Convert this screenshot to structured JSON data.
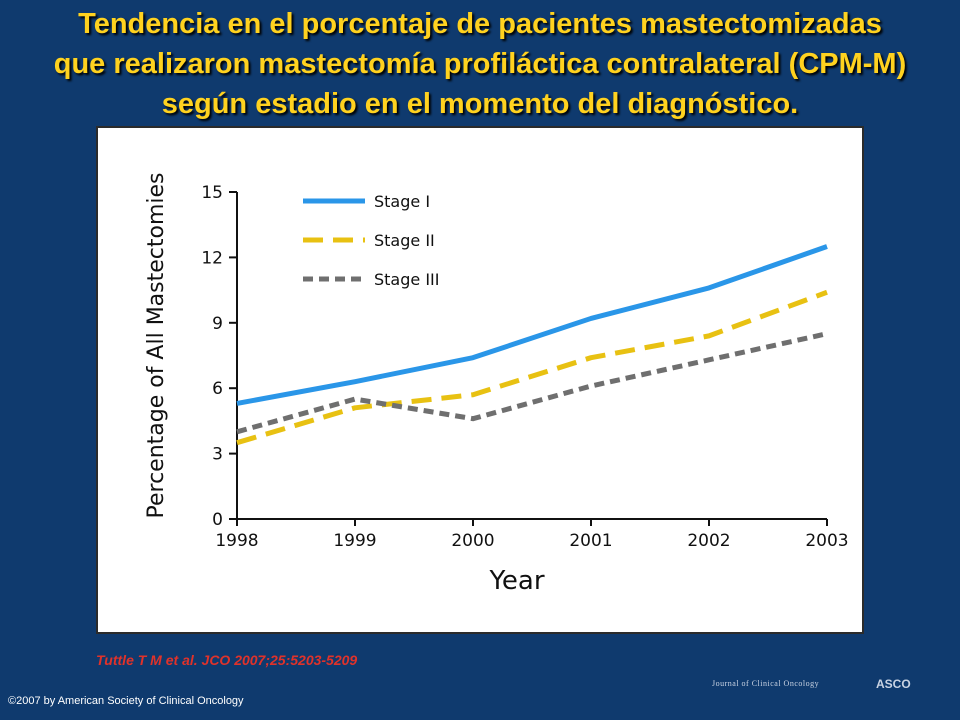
{
  "slide": {
    "title_lines": [
      "Tendencia en el porcentaje de pacientes mastectomizadas",
      "que realizaron mastectomía profiláctica contralateral (CPM-M)",
      "según estadio en el momento del diagnóstico."
    ],
    "citation": "Tuttle T M et al. JCO 2007;25:5203-5209",
    "copyright": "©2007 by American Society of Clinical Oncology",
    "journal_logo_text": "Journal of Clinical Oncology",
    "asco_logo_text": "ASCO"
  },
  "colors": {
    "background": "#0f3a6e",
    "title": "#ffd21f",
    "citation": "#e0322a",
    "stage1": "#2a96e8",
    "stage2": "#e8c112",
    "stage3": "#6f6f6f"
  },
  "chart_data": {
    "type": "line",
    "title": "",
    "xlabel": "Year",
    "ylabel": "Percentage of All Mastectomies",
    "x": [
      1998,
      1999,
      2000,
      2001,
      2002,
      2003
    ],
    "xlim": [
      1998,
      2003
    ],
    "ylim": [
      0,
      15
    ],
    "yticks": [
      0,
      3,
      6,
      9,
      12,
      15
    ],
    "grid": false,
    "legend_position": "top-left",
    "series": [
      {
        "name": "Stage I",
        "style": "solid",
        "color": "#2a96e8",
        "values": [
          5.3,
          6.3,
          7.4,
          9.2,
          10.6,
          12.5
        ]
      },
      {
        "name": "Stage II",
        "style": "dashed",
        "color": "#e8c112",
        "values": [
          3.5,
          5.1,
          5.7,
          7.4,
          8.4,
          10.4
        ]
      },
      {
        "name": "Stage III",
        "style": "dotted",
        "color": "#6f6f6f",
        "values": [
          4.0,
          5.5,
          4.6,
          6.1,
          7.3,
          8.5
        ]
      }
    ]
  }
}
